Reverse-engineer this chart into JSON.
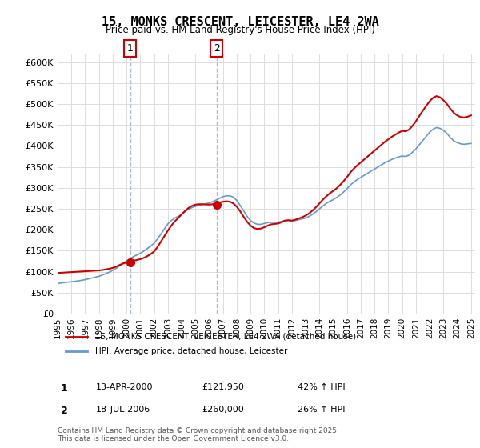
{
  "title": "15, MONKS CRESCENT, LEICESTER, LE4 2WA",
  "subtitle": "Price paid vs. HM Land Registry's House Price Index (HPI)",
  "legend_line1": "15, MONKS CRESCENT, LEICESTER, LE4 2WA (detached house)",
  "legend_line2": "HPI: Average price, detached house, Leicester",
  "annotation1_label": "1",
  "annotation1_date": "13-APR-2000",
  "annotation1_price": "£121,950",
  "annotation1_hpi": "42% ↑ HPI",
  "annotation2_label": "2",
  "annotation2_date": "18-JUL-2006",
  "annotation2_price": "£260,000",
  "annotation2_hpi": "26% ↑ HPI",
  "footer": "Contains HM Land Registry data © Crown copyright and database right 2025.\nThis data is licensed under the Open Government Licence v3.0.",
  "red_color": "#cc0000",
  "blue_color": "#6699cc",
  "annotation_box_color": "#cc0000",
  "vline_color": "#aabbdd",
  "grid_color": "#dddddd",
  "ylim": [
    0,
    620000
  ],
  "yticks": [
    0,
    50000,
    100000,
    150000,
    200000,
    250000,
    300000,
    350000,
    400000,
    450000,
    500000,
    550000,
    600000
  ],
  "hpi_x": [
    1995.0,
    1995.25,
    1995.5,
    1995.75,
    1996.0,
    1996.25,
    1996.5,
    1996.75,
    1997.0,
    1997.25,
    1997.5,
    1997.75,
    1998.0,
    1998.25,
    1998.5,
    1998.75,
    1999.0,
    1999.25,
    1999.5,
    1999.75,
    2000.0,
    2000.25,
    2000.5,
    2000.75,
    2001.0,
    2001.25,
    2001.5,
    2001.75,
    2002.0,
    2002.25,
    2002.5,
    2002.75,
    2003.0,
    2003.25,
    2003.5,
    2003.75,
    2004.0,
    2004.25,
    2004.5,
    2004.75,
    2005.0,
    2005.25,
    2005.5,
    2005.75,
    2006.0,
    2006.25,
    2006.5,
    2006.75,
    2007.0,
    2007.25,
    2007.5,
    2007.75,
    2008.0,
    2008.25,
    2008.5,
    2008.75,
    2009.0,
    2009.25,
    2009.5,
    2009.75,
    2010.0,
    2010.25,
    2010.5,
    2010.75,
    2011.0,
    2011.25,
    2011.5,
    2011.75,
    2012.0,
    2012.25,
    2012.5,
    2012.75,
    2013.0,
    2013.25,
    2013.5,
    2013.75,
    2014.0,
    2014.25,
    2014.5,
    2014.75,
    2015.0,
    2015.25,
    2015.5,
    2015.75,
    2016.0,
    2016.25,
    2016.5,
    2016.75,
    2017.0,
    2017.25,
    2017.5,
    2017.75,
    2018.0,
    2018.25,
    2018.5,
    2018.75,
    2019.0,
    2019.25,
    2019.5,
    2019.75,
    2020.0,
    2020.25,
    2020.5,
    2020.75,
    2021.0,
    2021.25,
    2021.5,
    2021.75,
    2022.0,
    2022.25,
    2022.5,
    2022.75,
    2023.0,
    2023.25,
    2023.5,
    2023.75,
    2024.0,
    2024.25,
    2024.5,
    2024.75,
    2025.0
  ],
  "hpi_y": [
    72000,
    73000,
    74000,
    75000,
    76000,
    77000,
    78000,
    79500,
    81000,
    83000,
    85000,
    87000,
    89000,
    92000,
    95500,
    99000,
    103000,
    108000,
    114000,
    120000,
    126000,
    131000,
    136000,
    140000,
    144000,
    149000,
    155000,
    161000,
    168000,
    178000,
    190000,
    202000,
    214000,
    222000,
    228000,
    232000,
    237000,
    243000,
    249000,
    253000,
    256000,
    258000,
    260000,
    262000,
    264000,
    267000,
    271000,
    275000,
    279000,
    281000,
    281000,
    278000,
    270000,
    258000,
    245000,
    232000,
    222000,
    216000,
    213000,
    213000,
    215000,
    217000,
    218000,
    218000,
    218000,
    220000,
    222000,
    222000,
    221000,
    222000,
    224000,
    226000,
    228000,
    232000,
    237000,
    243000,
    250000,
    257000,
    263000,
    268000,
    272000,
    277000,
    283000,
    290000,
    298000,
    307000,
    314000,
    320000,
    325000,
    330000,
    335000,
    340000,
    345000,
    350000,
    355000,
    360000,
    364000,
    368000,
    371000,
    374000,
    376000,
    375000,
    378000,
    385000,
    393000,
    403000,
    413000,
    423000,
    433000,
    440000,
    444000,
    442000,
    437000,
    430000,
    420000,
    412000,
    408000,
    405000,
    404000,
    405000,
    406000
  ],
  "price_x": [
    1995.0,
    1995.25,
    1995.5,
    1995.75,
    1996.0,
    1996.25,
    1996.5,
    1996.75,
    1997.0,
    1997.25,
    1997.5,
    1997.75,
    1998.0,
    1998.25,
    1998.5,
    1998.75,
    1999.0,
    1999.25,
    1999.5,
    1999.75,
    2000.0,
    2000.25,
    2000.5,
    2000.75,
    2001.0,
    2001.25,
    2001.5,
    2001.75,
    2002.0,
    2002.25,
    2002.5,
    2002.75,
    2003.0,
    2003.25,
    2003.5,
    2003.75,
    2004.0,
    2004.25,
    2004.5,
    2004.75,
    2005.0,
    2005.25,
    2005.5,
    2005.75,
    2006.0,
    2006.25,
    2006.5,
    2006.75,
    2007.0,
    2007.25,
    2007.5,
    2007.75,
    2008.0,
    2008.25,
    2008.5,
    2008.75,
    2009.0,
    2009.25,
    2009.5,
    2009.75,
    2010.0,
    2010.25,
    2010.5,
    2010.75,
    2011.0,
    2011.25,
    2011.5,
    2011.75,
    2012.0,
    2012.25,
    2012.5,
    2012.75,
    2013.0,
    2013.25,
    2013.5,
    2013.75,
    2014.0,
    2014.25,
    2014.5,
    2014.75,
    2015.0,
    2015.25,
    2015.5,
    2015.75,
    2016.0,
    2016.25,
    2016.5,
    2016.75,
    2017.0,
    2017.25,
    2017.5,
    2017.75,
    2018.0,
    2018.25,
    2018.5,
    2018.75,
    2019.0,
    2019.25,
    2019.5,
    2019.75,
    2020.0,
    2020.25,
    2020.5,
    2020.75,
    2021.0,
    2021.25,
    2021.5,
    2021.75,
    2022.0,
    2022.25,
    2022.5,
    2022.75,
    2023.0,
    2023.25,
    2023.5,
    2023.75,
    2024.0,
    2024.25,
    2024.5,
    2024.75,
    2025.0
  ],
  "price_y": [
    97000,
    97500,
    98000,
    98500,
    99000,
    99500,
    100000,
    100500,
    101000,
    101500,
    102000,
    102500,
    103000,
    104000,
    105500,
    107000,
    109000,
    112000,
    116000,
    119500,
    121950,
    124000,
    126000,
    128000,
    130000,
    133000,
    137000,
    142000,
    148000,
    159000,
    172000,
    185000,
    198000,
    210000,
    220000,
    228000,
    237000,
    245000,
    252000,
    257000,
    260000,
    261000,
    261000,
    260500,
    260000,
    261000,
    263000,
    265000,
    267000,
    268000,
    267000,
    263000,
    255000,
    244000,
    231000,
    219000,
    210000,
    204000,
    202000,
    203000,
    206000,
    210000,
    213000,
    214000,
    215000,
    218000,
    222000,
    223000,
    222000,
    224000,
    227000,
    230000,
    234000,
    239000,
    246000,
    254000,
    263000,
    272000,
    280000,
    287000,
    293000,
    299000,
    307000,
    316000,
    326000,
    337000,
    346000,
    354000,
    361000,
    368000,
    375000,
    382000,
    389000,
    396000,
    403000,
    410000,
    416000,
    422000,
    427000,
    432000,
    436000,
    435000,
    439000,
    448000,
    459000,
    472000,
    484000,
    496000,
    507000,
    515000,
    519000,
    516000,
    509000,
    500000,
    489000,
    479000,
    473000,
    469000,
    468000,
    470000,
    473000
  ],
  "ann1_x": 2000.27,
  "ann1_y": 121950,
  "ann2_x": 2006.54,
  "ann2_y": 260000,
  "vline1_x": 2000.27,
  "vline2_x": 2006.54,
  "xtick_years": [
    1995,
    1996,
    1997,
    1998,
    1999,
    2000,
    2001,
    2002,
    2003,
    2004,
    2005,
    2006,
    2007,
    2008,
    2009,
    2010,
    2011,
    2012,
    2013,
    2014,
    2015,
    2016,
    2017,
    2018,
    2019,
    2020,
    2021,
    2022,
    2023,
    2024,
    2025
  ]
}
